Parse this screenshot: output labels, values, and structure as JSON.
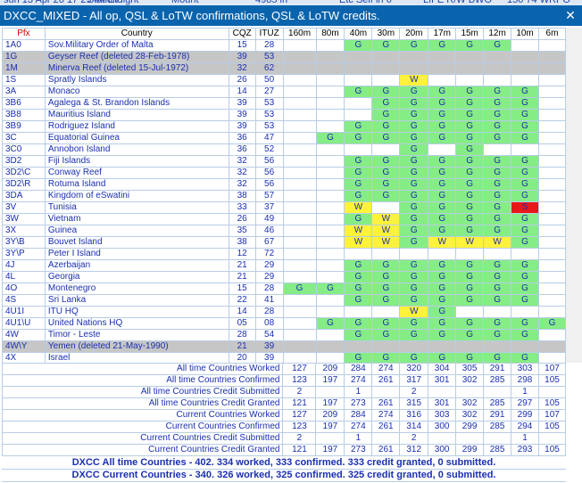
{
  "topstrip": [
    "sun 13 Apr 26 17 29 44 Etc",
    "Station light",
    "Mount",
    "4985 in",
    "Etc Self in 6",
    "LIFE R/W BWO",
    "150 74 WRPO"
  ],
  "window": {
    "title": "DXCC_MIXED - All op, QSL & LoTW confirmations, QSL & LoTW credits.",
    "close": "✕"
  },
  "columns": {
    "pfx": "Pfx",
    "country": "Country",
    "cqz": "CQZ",
    "ituz": "ITUZ",
    "bands": [
      "160m",
      "80m",
      "40m",
      "30m",
      "20m",
      "17m",
      "15m",
      "12m",
      "10m",
      "6m"
    ]
  },
  "rows": [
    {
      "pfx": "1A0",
      "country": "Sov.Military Order of Malta",
      "cqz": "15",
      "ituz": "28",
      "bands": [
        "",
        "",
        "G",
        "G",
        "G",
        "G",
        "G",
        "G",
        "",
        ""
      ]
    },
    {
      "pfx": "1G",
      "country": "Geyser Reef  (deleted 28-Feb-1978)",
      "cqz": "39",
      "ituz": "53",
      "deleted": true,
      "bands": [
        "",
        "",
        "",
        "",
        "",
        "",
        "",
        "",
        "",
        ""
      ]
    },
    {
      "pfx": "1M",
      "country": "Minerva Reef  (deleted 15-Jul-1972)",
      "cqz": "32",
      "ituz": "62",
      "deleted": true,
      "bands": [
        "",
        "",
        "",
        "",
        "",
        "",
        "",
        "",
        "",
        ""
      ]
    },
    {
      "pfx": "1S",
      "country": "Spratly Islands",
      "cqz": "26",
      "ituz": "50",
      "bands": [
        "",
        "",
        "",
        "",
        "W",
        "",
        "",
        "",
        "",
        ""
      ]
    },
    {
      "pfx": "3A",
      "country": "Monaco",
      "cqz": "14",
      "ituz": "27",
      "bands": [
        "",
        "",
        "G",
        "G",
        "G",
        "G",
        "G",
        "G",
        "G",
        ""
      ]
    },
    {
      "pfx": "3B6",
      "country": "Agalega & St. Brandon Islands",
      "cqz": "39",
      "ituz": "53",
      "bands": [
        "",
        "",
        "",
        "G",
        "G",
        "G",
        "G",
        "G",
        "G",
        ""
      ]
    },
    {
      "pfx": "3B8",
      "country": "Mauritius Island",
      "cqz": "39",
      "ituz": "53",
      "bands": [
        "",
        "",
        "",
        "G",
        "G",
        "G",
        "G",
        "G",
        "G",
        ""
      ]
    },
    {
      "pfx": "3B9",
      "country": "Rodriguez Island",
      "cqz": "39",
      "ituz": "53",
      "bands": [
        "",
        "",
        "G",
        "G",
        "G",
        "G",
        "G",
        "G",
        "G",
        ""
      ]
    },
    {
      "pfx": "3C",
      "country": "Equatorial Guinea",
      "cqz": "36",
      "ituz": "47",
      "bands": [
        "",
        "G",
        "G",
        "G",
        "G",
        "G",
        "G",
        "G",
        "G",
        ""
      ]
    },
    {
      "pfx": "3C0",
      "country": "Annobon Island",
      "cqz": "36",
      "ituz": "52",
      "bands": [
        "",
        "",
        "",
        "",
        "G",
        "",
        "G",
        "",
        "",
        ""
      ]
    },
    {
      "pfx": "3D2",
      "country": "Fiji Islands",
      "cqz": "32",
      "ituz": "56",
      "bands": [
        "",
        "",
        "G",
        "G",
        "G",
        "G",
        "G",
        "G",
        "G",
        ""
      ]
    },
    {
      "pfx": "3D2\\C",
      "country": "Conway Reef",
      "cqz": "32",
      "ituz": "56",
      "bands": [
        "",
        "",
        "G",
        "G",
        "G",
        "G",
        "G",
        "G",
        "G",
        ""
      ]
    },
    {
      "pfx": "3D2\\R",
      "country": "Rotuma Island",
      "cqz": "32",
      "ituz": "56",
      "bands": [
        "",
        "",
        "G",
        "G",
        "G",
        "G",
        "G",
        "G",
        "G",
        ""
      ]
    },
    {
      "pfx": "3DA",
      "country": "Kingdom of eSwatini",
      "cqz": "38",
      "ituz": "57",
      "bands": [
        "",
        "",
        "G",
        "G",
        "G",
        "G",
        "G",
        "G",
        "G",
        ""
      ]
    },
    {
      "pfx": "3V",
      "country": "Tunisia",
      "cqz": "33",
      "ituz": "37",
      "bands": [
        "",
        "",
        "W",
        "",
        "G",
        "G",
        "G",
        "G",
        "S",
        ""
      ]
    },
    {
      "pfx": "3W",
      "country": "Vietnam",
      "cqz": "26",
      "ituz": "49",
      "bands": [
        "",
        "",
        "G",
        "W",
        "G",
        "G",
        "G",
        "G",
        "G",
        ""
      ]
    },
    {
      "pfx": "3X",
      "country": "Guinea",
      "cqz": "35",
      "ituz": "46",
      "bands": [
        "",
        "",
        "W",
        "W",
        "G",
        "G",
        "G",
        "G",
        "G",
        ""
      ]
    },
    {
      "pfx": "3Y\\B",
      "country": "Bouvet Island",
      "cqz": "38",
      "ituz": "67",
      "bands": [
        "",
        "",
        "W",
        "W",
        "G",
        "W",
        "W",
        "W",
        "G",
        ""
      ]
    },
    {
      "pfx": "3Y\\P",
      "country": "Peter I Island",
      "cqz": "12",
      "ituz": "72",
      "bands": [
        "",
        "",
        "",
        "",
        "",
        "",
        "",
        "",
        "",
        ""
      ]
    },
    {
      "pfx": "4J",
      "country": "Azerbaijan",
      "cqz": "21",
      "ituz": "29",
      "bands": [
        "",
        "",
        "G",
        "G",
        "G",
        "G",
        "G",
        "G",
        "G",
        ""
      ]
    },
    {
      "pfx": "4L",
      "country": "Georgia",
      "cqz": "21",
      "ituz": "29",
      "bands": [
        "",
        "",
        "G",
        "G",
        "G",
        "G",
        "G",
        "G",
        "G",
        ""
      ]
    },
    {
      "pfx": "4O",
      "country": "Montenegro",
      "cqz": "15",
      "ituz": "28",
      "bands": [
        "G",
        "G",
        "G",
        "G",
        "G",
        "G",
        "G",
        "G",
        "G",
        ""
      ]
    },
    {
      "pfx": "4S",
      "country": "Sri Lanka",
      "cqz": "22",
      "ituz": "41",
      "bands": [
        "",
        "",
        "G",
        "G",
        "G",
        "G",
        "G",
        "G",
        "G",
        ""
      ]
    },
    {
      "pfx": "4U1I",
      "country": "ITU HQ",
      "cqz": "14",
      "ituz": "28",
      "bands": [
        "",
        "",
        "",
        "",
        "W",
        "G",
        "",
        "",
        "",
        ""
      ]
    },
    {
      "pfx": "4U1\\U",
      "country": "United Nations HQ",
      "cqz": "05",
      "ituz": "08",
      "bands": [
        "",
        "G",
        "G",
        "G",
        "G",
        "G",
        "G",
        "G",
        "G",
        "G"
      ]
    },
    {
      "pfx": "4W",
      "country": "Timor - Leste",
      "cqz": "28",
      "ituz": "54",
      "bands": [
        "",
        "",
        "G",
        "G",
        "G",
        "G",
        "G",
        "G",
        "G",
        ""
      ]
    },
    {
      "pfx": "4W\\Y",
      "country": "Yemen  (deleted 21-May-1990)",
      "cqz": "21",
      "ituz": "39",
      "deleted": true,
      "bands": [
        "",
        "",
        "",
        "",
        "",
        "",
        "",
        "",
        "",
        ""
      ]
    },
    {
      "pfx": "4X",
      "country": "Israel",
      "cqz": "20",
      "ituz": "39",
      "bands": [
        "",
        "",
        "G",
        "G",
        "G",
        "G",
        "G",
        "G",
        "G",
        ""
      ]
    }
  ],
  "summary": [
    {
      "label": "All time Countries Worked",
      "values": [
        "127",
        "209",
        "284",
        "274",
        "320",
        "304",
        "305",
        "291",
        "303",
        "107"
      ]
    },
    {
      "label": "All time Countries Confirmed",
      "values": [
        "123",
        "197",
        "274",
        "261",
        "317",
        "301",
        "302",
        "285",
        "298",
        "105"
      ]
    },
    {
      "label": "All time Countries Credit Submitted",
      "values": [
        "2",
        "",
        "1",
        "",
        "2",
        "",
        "",
        "",
        "1",
        ""
      ]
    },
    {
      "label": "All time Countries Credit Granted",
      "values": [
        "121",
        "197",
        "273",
        "261",
        "315",
        "301",
        "302",
        "285",
        "297",
        "105"
      ]
    },
    {
      "label": "Current Countries Worked",
      "values": [
        "127",
        "209",
        "284",
        "274",
        "316",
        "303",
        "302",
        "291",
        "299",
        "107"
      ]
    },
    {
      "label": "Current Countries Confirmed",
      "values": [
        "123",
        "197",
        "274",
        "261",
        "314",
        "300",
        "299",
        "285",
        "294",
        "105"
      ]
    },
    {
      "label": "Current Countries Credit Submitted",
      "values": [
        "2",
        "",
        "1",
        "",
        "2",
        "",
        "",
        "",
        "1",
        ""
      ]
    },
    {
      "label": "Current Countries Credit Granted",
      "values": [
        "121",
        "197",
        "273",
        "261",
        "312",
        "300",
        "299",
        "285",
        "293",
        "105"
      ]
    }
  ],
  "totals": [
    "DXCC All time Countries - 402.  334 worked, 333 confirmed. 333 credit granted, 0 submitted.",
    "DXCC Current Countries - 340.  326 worked, 325 confirmed. 325 credit granted, 0 submitted."
  ]
}
